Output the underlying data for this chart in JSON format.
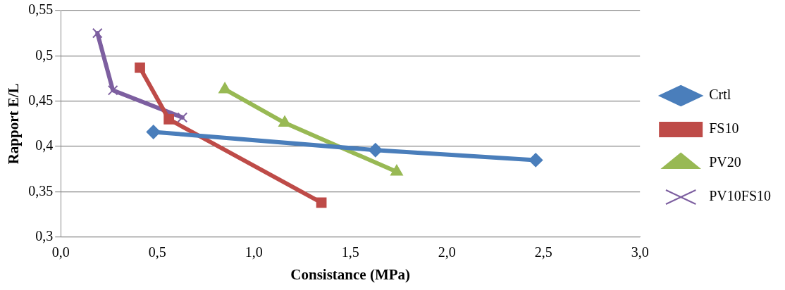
{
  "chart_data": {
    "type": "line",
    "xlabel": "Consistance (MPa)",
    "ylabel": "Rapport E/L",
    "xlim": [
      0,
      3
    ],
    "xticks": [
      {
        "value": 0,
        "label": "0,0"
      },
      {
        "value": 0.5,
        "label": "0,5"
      },
      {
        "value": 1,
        "label": "1,0"
      },
      {
        "value": 1.5,
        "label": "1,5"
      },
      {
        "value": 2,
        "label": "2,0"
      },
      {
        "value": 2.5,
        "label": "2,5"
      },
      {
        "value": 3,
        "label": "3,0"
      }
    ],
    "ylim": [
      0.3,
      0.55
    ],
    "yticks": [
      {
        "value": 0.3,
        "label": "0,3"
      },
      {
        "value": 0.35,
        "label": "0,35"
      },
      {
        "value": 0.4,
        "label": "0,4"
      },
      {
        "value": 0.45,
        "label": "0,45"
      },
      {
        "value": 0.5,
        "label": "0,5"
      },
      {
        "value": 0.55,
        "label": "0,55"
      }
    ],
    "grid": "y",
    "legend": "right",
    "series": [
      {
        "name": "Crtl",
        "color": "#4a7ebb",
        "marker": "diamond",
        "x": [
          0.48,
          1.63,
          2.46
        ],
        "values": [
          0.416,
          0.396,
          0.385
        ]
      },
      {
        "name": "FS10",
        "color": "#be4b48",
        "marker": "square",
        "x": [
          0.41,
          0.56,
          1.35
        ],
        "values": [
          0.487,
          0.43,
          0.338
        ]
      },
      {
        "name": "PV20",
        "color": "#98b954",
        "marker": "triangle",
        "x": [
          0.85,
          1.16,
          1.74
        ],
        "values": [
          0.463,
          0.426,
          0.372
        ]
      },
      {
        "name": "PV10FS10",
        "color": "#7d5fa0",
        "marker": "cross",
        "x": [
          0.19,
          0.27,
          0.63
        ],
        "values": [
          0.525,
          0.462,
          0.432
        ]
      }
    ]
  }
}
